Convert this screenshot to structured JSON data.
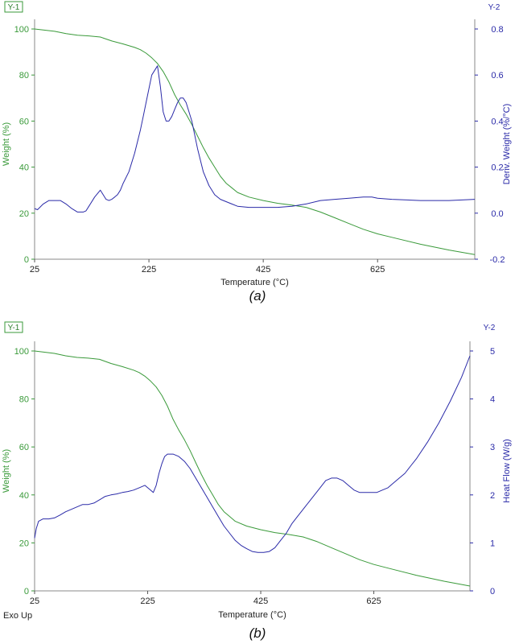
{
  "chart_data": [
    {
      "type": "line",
      "caption": "(a)",
      "xlabel": "Temperature (°C)",
      "x_ticks": [
        "25",
        "225",
        "425",
        "625"
      ],
      "xlim": [
        25,
        795
      ],
      "y1_axis_tag": "Y-1",
      "y2_axis_tag": "Y-2",
      "ylabel_left": "Weight (%)",
      "ylabel_right": "Deriv. Weight (%/°C)",
      "y1_ticks": [
        "0",
        "20",
        "40",
        "60",
        "80",
        "100"
      ],
      "y2_ticks": [
        "-0.2",
        "0.0",
        "0.2",
        "0.4",
        "0.6",
        "0.8"
      ],
      "y1lim": [
        0,
        100
      ],
      "y2lim": [
        -0.2,
        0.8
      ],
      "colors": {
        "weight": "#3a9a3a",
        "secondary": "#2a2aa8",
        "axis_left": "#3a9a3a",
        "axis_right": "#2a2aa8"
      },
      "series": [
        {
          "axis": "left",
          "role": "weight",
          "x": [
            25,
            60,
            80,
            100,
            120,
            140,
            160,
            180,
            200,
            210,
            220,
            230,
            240,
            250,
            260,
            270,
            280,
            290,
            300,
            310,
            320,
            330,
            340,
            350,
            360,
            370,
            380,
            400,
            425,
            450,
            475,
            500,
            525,
            550,
            575,
            600,
            625,
            650,
            700,
            750,
            795
          ],
          "y": [
            100,
            99,
            98,
            97.3,
            97,
            96.5,
            94.8,
            93.5,
            92,
            91,
            89.5,
            87.5,
            85,
            81.5,
            77,
            71.5,
            67,
            63,
            58.5,
            53.5,
            48.5,
            44,
            40,
            36,
            33,
            31,
            29,
            27,
            25.5,
            24.3,
            23.5,
            22.5,
            20.5,
            18,
            15.5,
            13,
            11,
            9.5,
            6.5,
            4,
            2
          ]
        },
        {
          "axis": "right",
          "role": "secondary",
          "x": [
            25,
            30,
            40,
            50,
            60,
            70,
            80,
            90,
            100,
            110,
            115,
            120,
            130,
            140,
            145,
            150,
            155,
            160,
            165,
            170,
            175,
            180,
            190,
            200,
            210,
            215,
            220,
            230,
            240,
            245,
            250,
            255,
            260,
            265,
            270,
            275,
            280,
            285,
            290,
            300,
            310,
            320,
            330,
            340,
            350,
            360,
            370,
            380,
            400,
            425,
            450,
            475,
            500,
            525,
            550,
            575,
            600,
            615,
            625,
            650,
            700,
            750,
            795
          ],
          "y": [
            0.02,
            0.015,
            0.04,
            0.055,
            0.055,
            0.055,
            0.04,
            0.02,
            0.005,
            0.005,
            0.01,
            0.03,
            0.07,
            0.1,
            0.08,
            0.06,
            0.055,
            0.06,
            0.07,
            0.08,
            0.1,
            0.13,
            0.18,
            0.26,
            0.36,
            0.42,
            0.48,
            0.6,
            0.64,
            0.55,
            0.44,
            0.4,
            0.4,
            0.42,
            0.45,
            0.48,
            0.5,
            0.5,
            0.48,
            0.4,
            0.28,
            0.18,
            0.12,
            0.08,
            0.06,
            0.05,
            0.04,
            0.03,
            0.025,
            0.025,
            0.025,
            0.03,
            0.04,
            0.055,
            0.06,
            0.065,
            0.07,
            0.07,
            0.065,
            0.06,
            0.055,
            0.055,
            0.06
          ]
        }
      ]
    },
    {
      "type": "line",
      "caption": "(b)",
      "xlabel": "Temperature (°C)",
      "x_ticks": [
        "25",
        "225",
        "425",
        "625"
      ],
      "xlim": [
        25,
        795
      ],
      "corner_label": "Exo Up",
      "y1_axis_tag": "Y-1",
      "y2_axis_tag": "Y-2",
      "ylabel_left": "Weight (%)",
      "ylabel_right": "Heat Flow (W/g)",
      "y1_ticks": [
        "0",
        "20",
        "40",
        "60",
        "80",
        "100"
      ],
      "y2_ticks": [
        "0",
        "1",
        "2",
        "3",
        "4",
        "5"
      ],
      "y1lim": [
        0,
        100
      ],
      "y2lim": [
        0,
        5
      ],
      "colors": {
        "weight": "#3a9a3a",
        "secondary": "#2a2aa8",
        "axis_left": "#3a9a3a",
        "axis_right": "#2a2aa8"
      },
      "series": [
        {
          "axis": "left",
          "role": "weight",
          "x": [
            25,
            60,
            80,
            100,
            120,
            140,
            160,
            180,
            200,
            210,
            220,
            230,
            240,
            250,
            260,
            270,
            280,
            290,
            300,
            310,
            320,
            330,
            340,
            350,
            360,
            370,
            380,
            400,
            425,
            450,
            475,
            500,
            525,
            550,
            575,
            600,
            625,
            650,
            700,
            750,
            795
          ],
          "y": [
            100,
            99,
            98,
            97.3,
            97,
            96.5,
            94.8,
            93.5,
            92,
            91,
            89.5,
            87.5,
            85,
            81.5,
            77,
            71.5,
            67,
            63,
            58.5,
            53.5,
            48.5,
            44,
            40,
            36,
            33,
            31,
            29,
            27,
            25.5,
            24.3,
            23.5,
            22.5,
            20.5,
            18,
            15.5,
            13,
            11,
            9.5,
            6.5,
            4,
            2
          ]
        },
        {
          "axis": "right",
          "role": "secondary",
          "x": [
            25,
            28,
            32,
            40,
            50,
            60,
            70,
            80,
            90,
            100,
            110,
            120,
            130,
            140,
            150,
            160,
            170,
            180,
            190,
            200,
            210,
            220,
            230,
            235,
            240,
            245,
            250,
            255,
            260,
            270,
            280,
            290,
            300,
            310,
            320,
            330,
            340,
            350,
            360,
            370,
            380,
            390,
            400,
            410,
            420,
            430,
            440,
            450,
            460,
            470,
            475,
            480,
            490,
            500,
            510,
            520,
            530,
            540,
            550,
            560,
            570,
            580,
            590,
            600,
            610,
            620,
            630,
            640,
            650,
            660,
            670,
            680,
            690,
            700,
            720,
            740,
            760,
            780,
            795
          ],
          "y": [
            1.1,
            1.3,
            1.45,
            1.5,
            1.5,
            1.52,
            1.58,
            1.65,
            1.7,
            1.75,
            1.8,
            1.8,
            1.83,
            1.9,
            1.97,
            2.0,
            2.02,
            2.05,
            2.07,
            2.1,
            2.15,
            2.2,
            2.1,
            2.05,
            2.2,
            2.45,
            2.65,
            2.8,
            2.85,
            2.85,
            2.8,
            2.7,
            2.55,
            2.35,
            2.15,
            1.95,
            1.75,
            1.55,
            1.35,
            1.2,
            1.05,
            0.95,
            0.88,
            0.82,
            0.8,
            0.8,
            0.82,
            0.9,
            1.05,
            1.2,
            1.3,
            1.4,
            1.55,
            1.7,
            1.85,
            2.0,
            2.15,
            2.3,
            2.35,
            2.35,
            2.3,
            2.2,
            2.1,
            2.05,
            2.05,
            2.05,
            2.05,
            2.1,
            2.15,
            2.25,
            2.35,
            2.45,
            2.6,
            2.75,
            3.1,
            3.5,
            3.95,
            4.45,
            4.9
          ]
        }
      ]
    }
  ]
}
